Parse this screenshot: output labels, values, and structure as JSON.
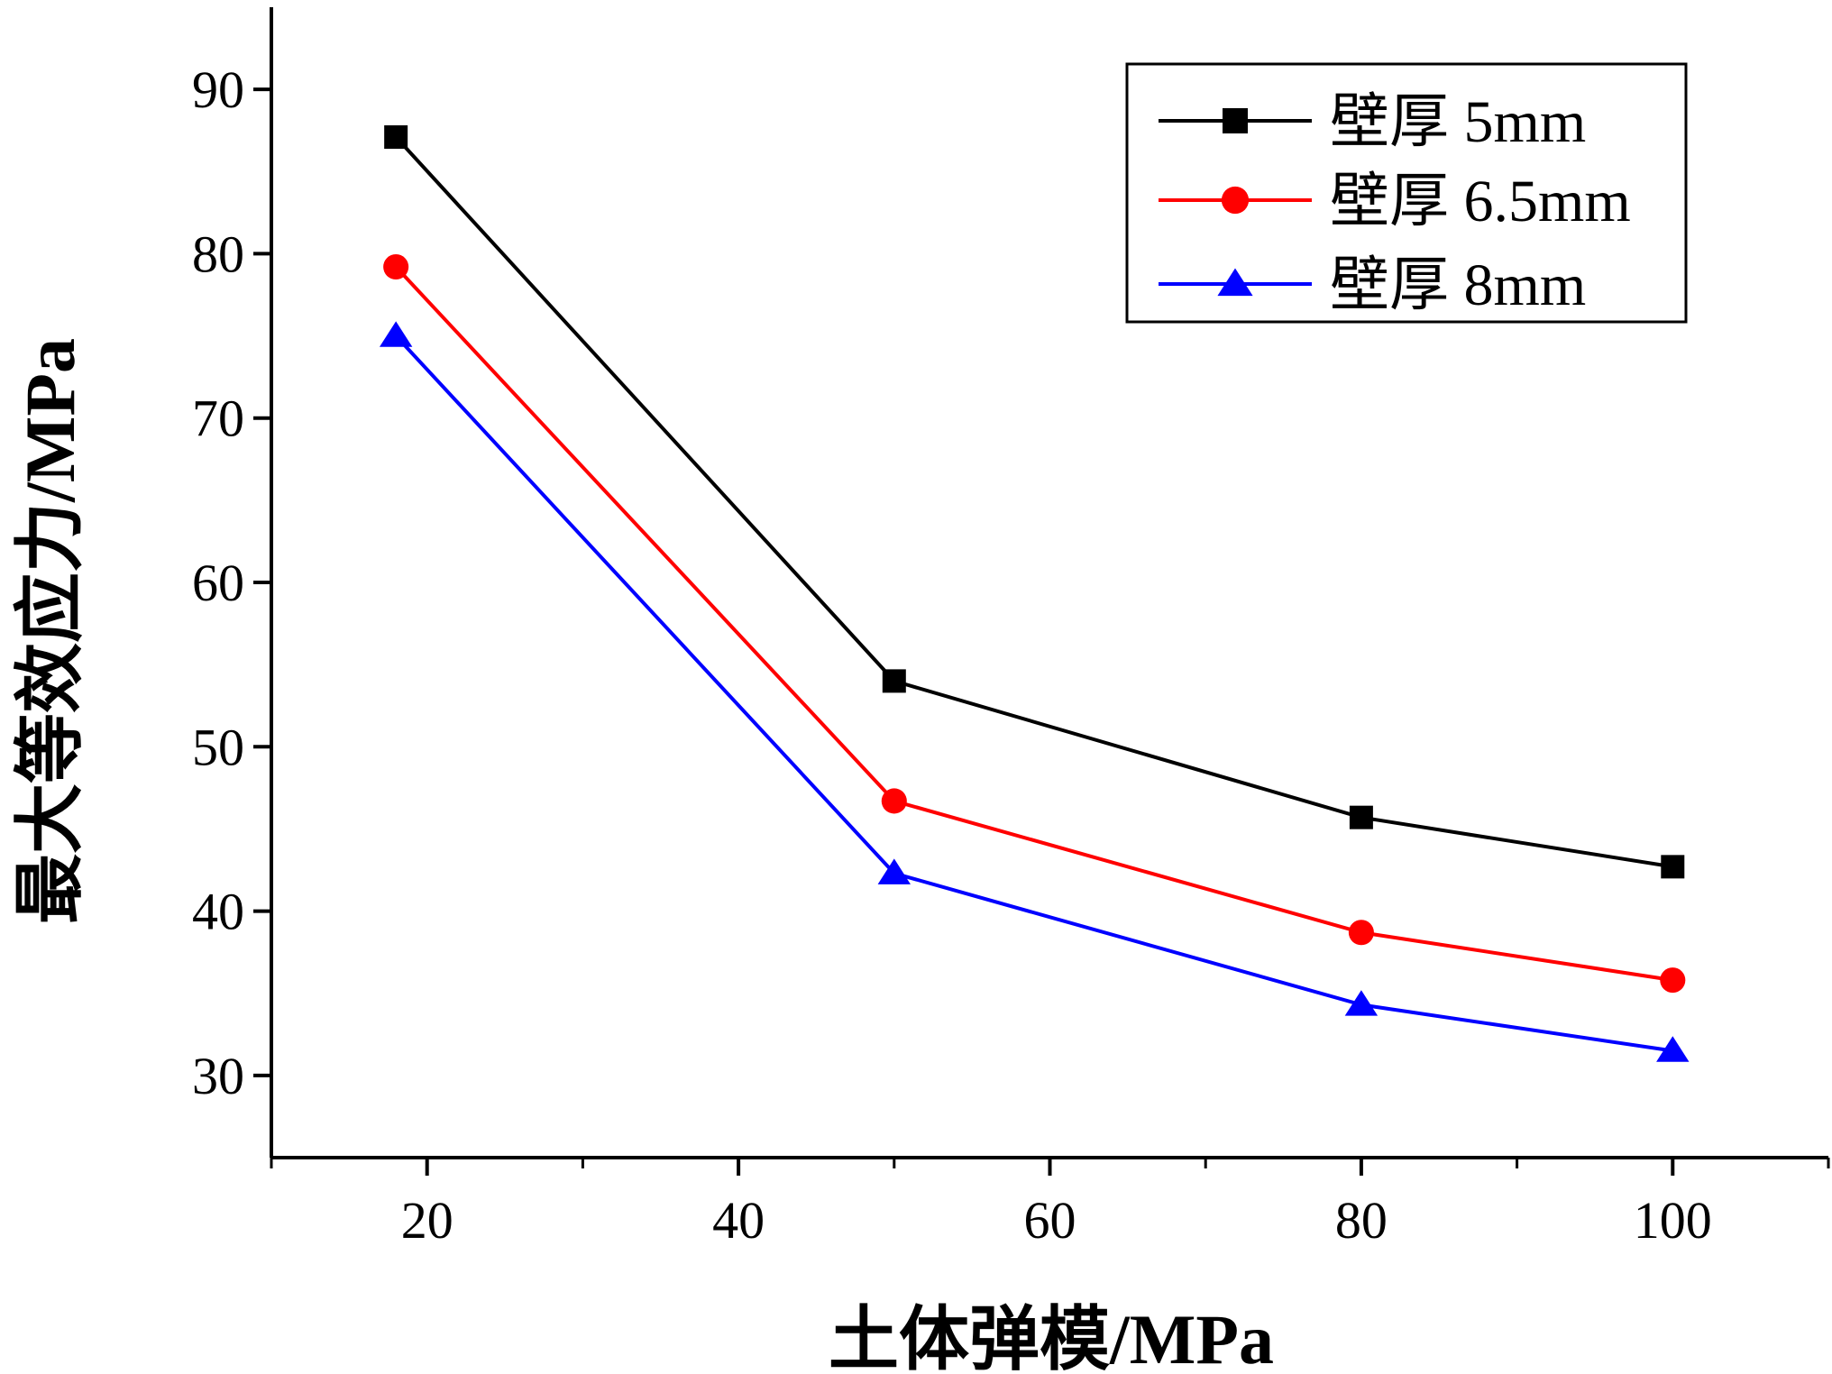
{
  "chart_data": {
    "type": "line",
    "title": "",
    "xlabel": "土体弹模/MPa",
    "ylabel": "最大等效应力/MPa",
    "xlim": [
      10,
      110
    ],
    "ylim": [
      25,
      95
    ],
    "x_ticks": [
      20,
      40,
      60,
      80,
      100
    ],
    "x_minor_ticks": [
      10,
      30,
      50,
      70,
      90,
      110
    ],
    "y_ticks": [
      30,
      40,
      50,
      60,
      70,
      80,
      90
    ],
    "x": [
      18,
      50,
      80,
      100
    ],
    "series": [
      {
        "name": "壁厚 5mm",
        "color": "#000000",
        "marker": "square",
        "values": [
          87.1,
          54.0,
          45.7,
          42.7
        ]
      },
      {
        "name": "壁厚 6.5mm",
        "color": "#ff0000",
        "marker": "circle",
        "values": [
          79.2,
          46.7,
          38.7,
          35.8
        ]
      },
      {
        "name": "壁厚 8mm",
        "color": "#0000ff",
        "marker": "triangle",
        "values": [
          75.0,
          42.3,
          34.3,
          31.5
        ]
      }
    ],
    "legend_position": "top-right",
    "grid": false
  }
}
